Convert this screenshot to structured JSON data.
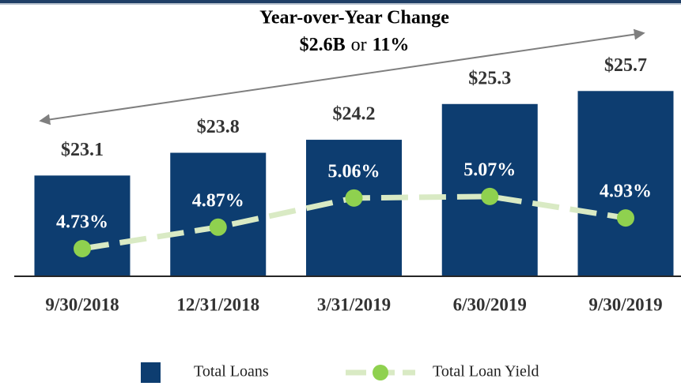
{
  "chart_data": {
    "type": "bar-line",
    "title": "Year-over-Year Change",
    "subtitle": [
      "$2.6B",
      "or",
      "11%"
    ],
    "categories": [
      "9/30/2018",
      "12/31/2018",
      "3/31/2019",
      "6/30/2019",
      "9/30/2019"
    ],
    "series": [
      {
        "name": "Total Loans",
        "type": "bar",
        "color": "#0d3d70",
        "values": [
          23.1,
          23.8,
          24.2,
          25.3,
          25.7
        ],
        "value_labels": [
          "$23.1",
          "$23.8",
          "$24.2",
          "$25.3",
          "$25.7"
        ]
      },
      {
        "name": "Total Loan Yield",
        "type": "line",
        "axis": "y2",
        "color": "#d9eac4",
        "marker_color": "#8fd14f",
        "values": [
          4.73,
          4.87,
          5.06,
          5.07,
          4.93
        ],
        "value_labels": [
          "4.73%",
          "4.87%",
          "5.06%",
          "5.07%",
          "4.93%"
        ]
      }
    ],
    "ylim": [
      20,
      28.5
    ],
    "y2lim": [
      4.55,
      6.35
    ],
    "legend": "bottom"
  }
}
